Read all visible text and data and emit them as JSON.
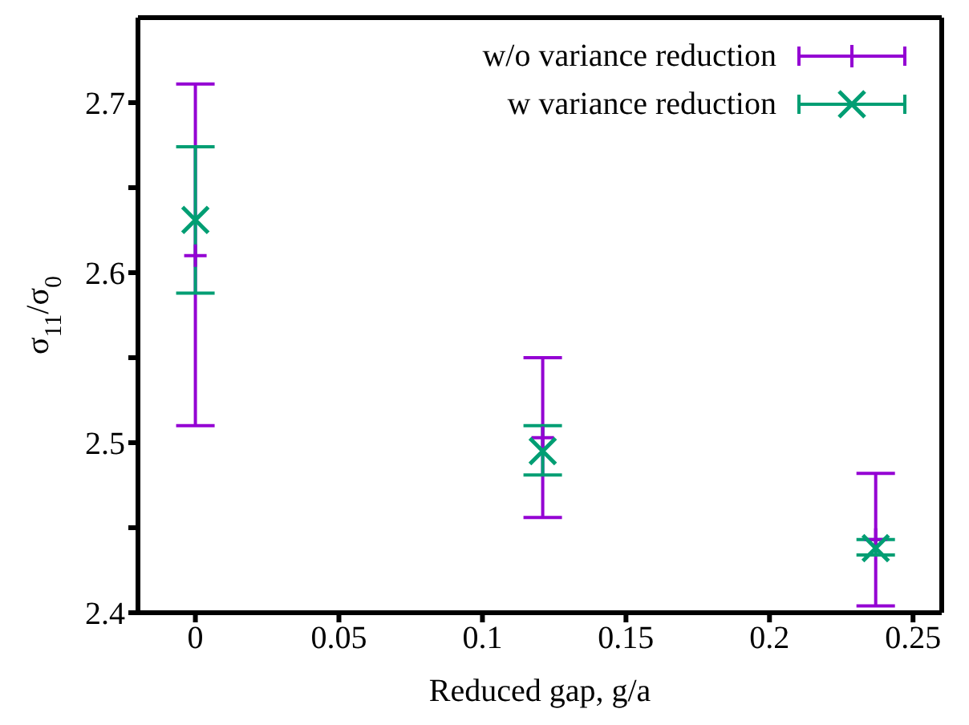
{
  "chart_data": {
    "type": "scatter",
    "xlabel": "Reduced gap, g/a",
    "ylabel": "σ$_{11}$/σ$_{0}$",
    "xlim": [
      -0.02,
      0.26
    ],
    "xticks": [
      0,
      0.05,
      0.1,
      0.15,
      0.2,
      0.25
    ],
    "ylim": [
      2.4,
      2.75
    ],
    "yticks": [
      2.4,
      {
        "value": 2.45,
        "label": null
      },
      2.5,
      {
        "value": 2.55,
        "label": null
      },
      2.6,
      {
        "value": 2.65,
        "label": null
      },
      2.7
    ],
    "grid": false,
    "legend": "top right",
    "series": [
      {
        "name": "w/o variance reduction",
        "color": "#9400d3",
        "marker": "plus",
        "x": [
          0,
          0.121,
          0.237
        ],
        "values": [
          2.61,
          2.503,
          2.443
        ],
        "errors": [
          [
            2.51,
            2.711
          ],
          [
            2.456,
            2.55
          ],
          [
            2.404,
            2.482
          ]
        ]
      },
      {
        "name": "w variance reduction",
        "color": "#009e73",
        "marker": "cross",
        "x": [
          0,
          0.121,
          0.237
        ],
        "values": [
          2.631,
          2.495,
          2.438
        ],
        "errors": [
          [
            2.588,
            2.674
          ],
          [
            2.481,
            2.51
          ],
          [
            2.434,
            2.443
          ]
        ]
      }
    ]
  }
}
